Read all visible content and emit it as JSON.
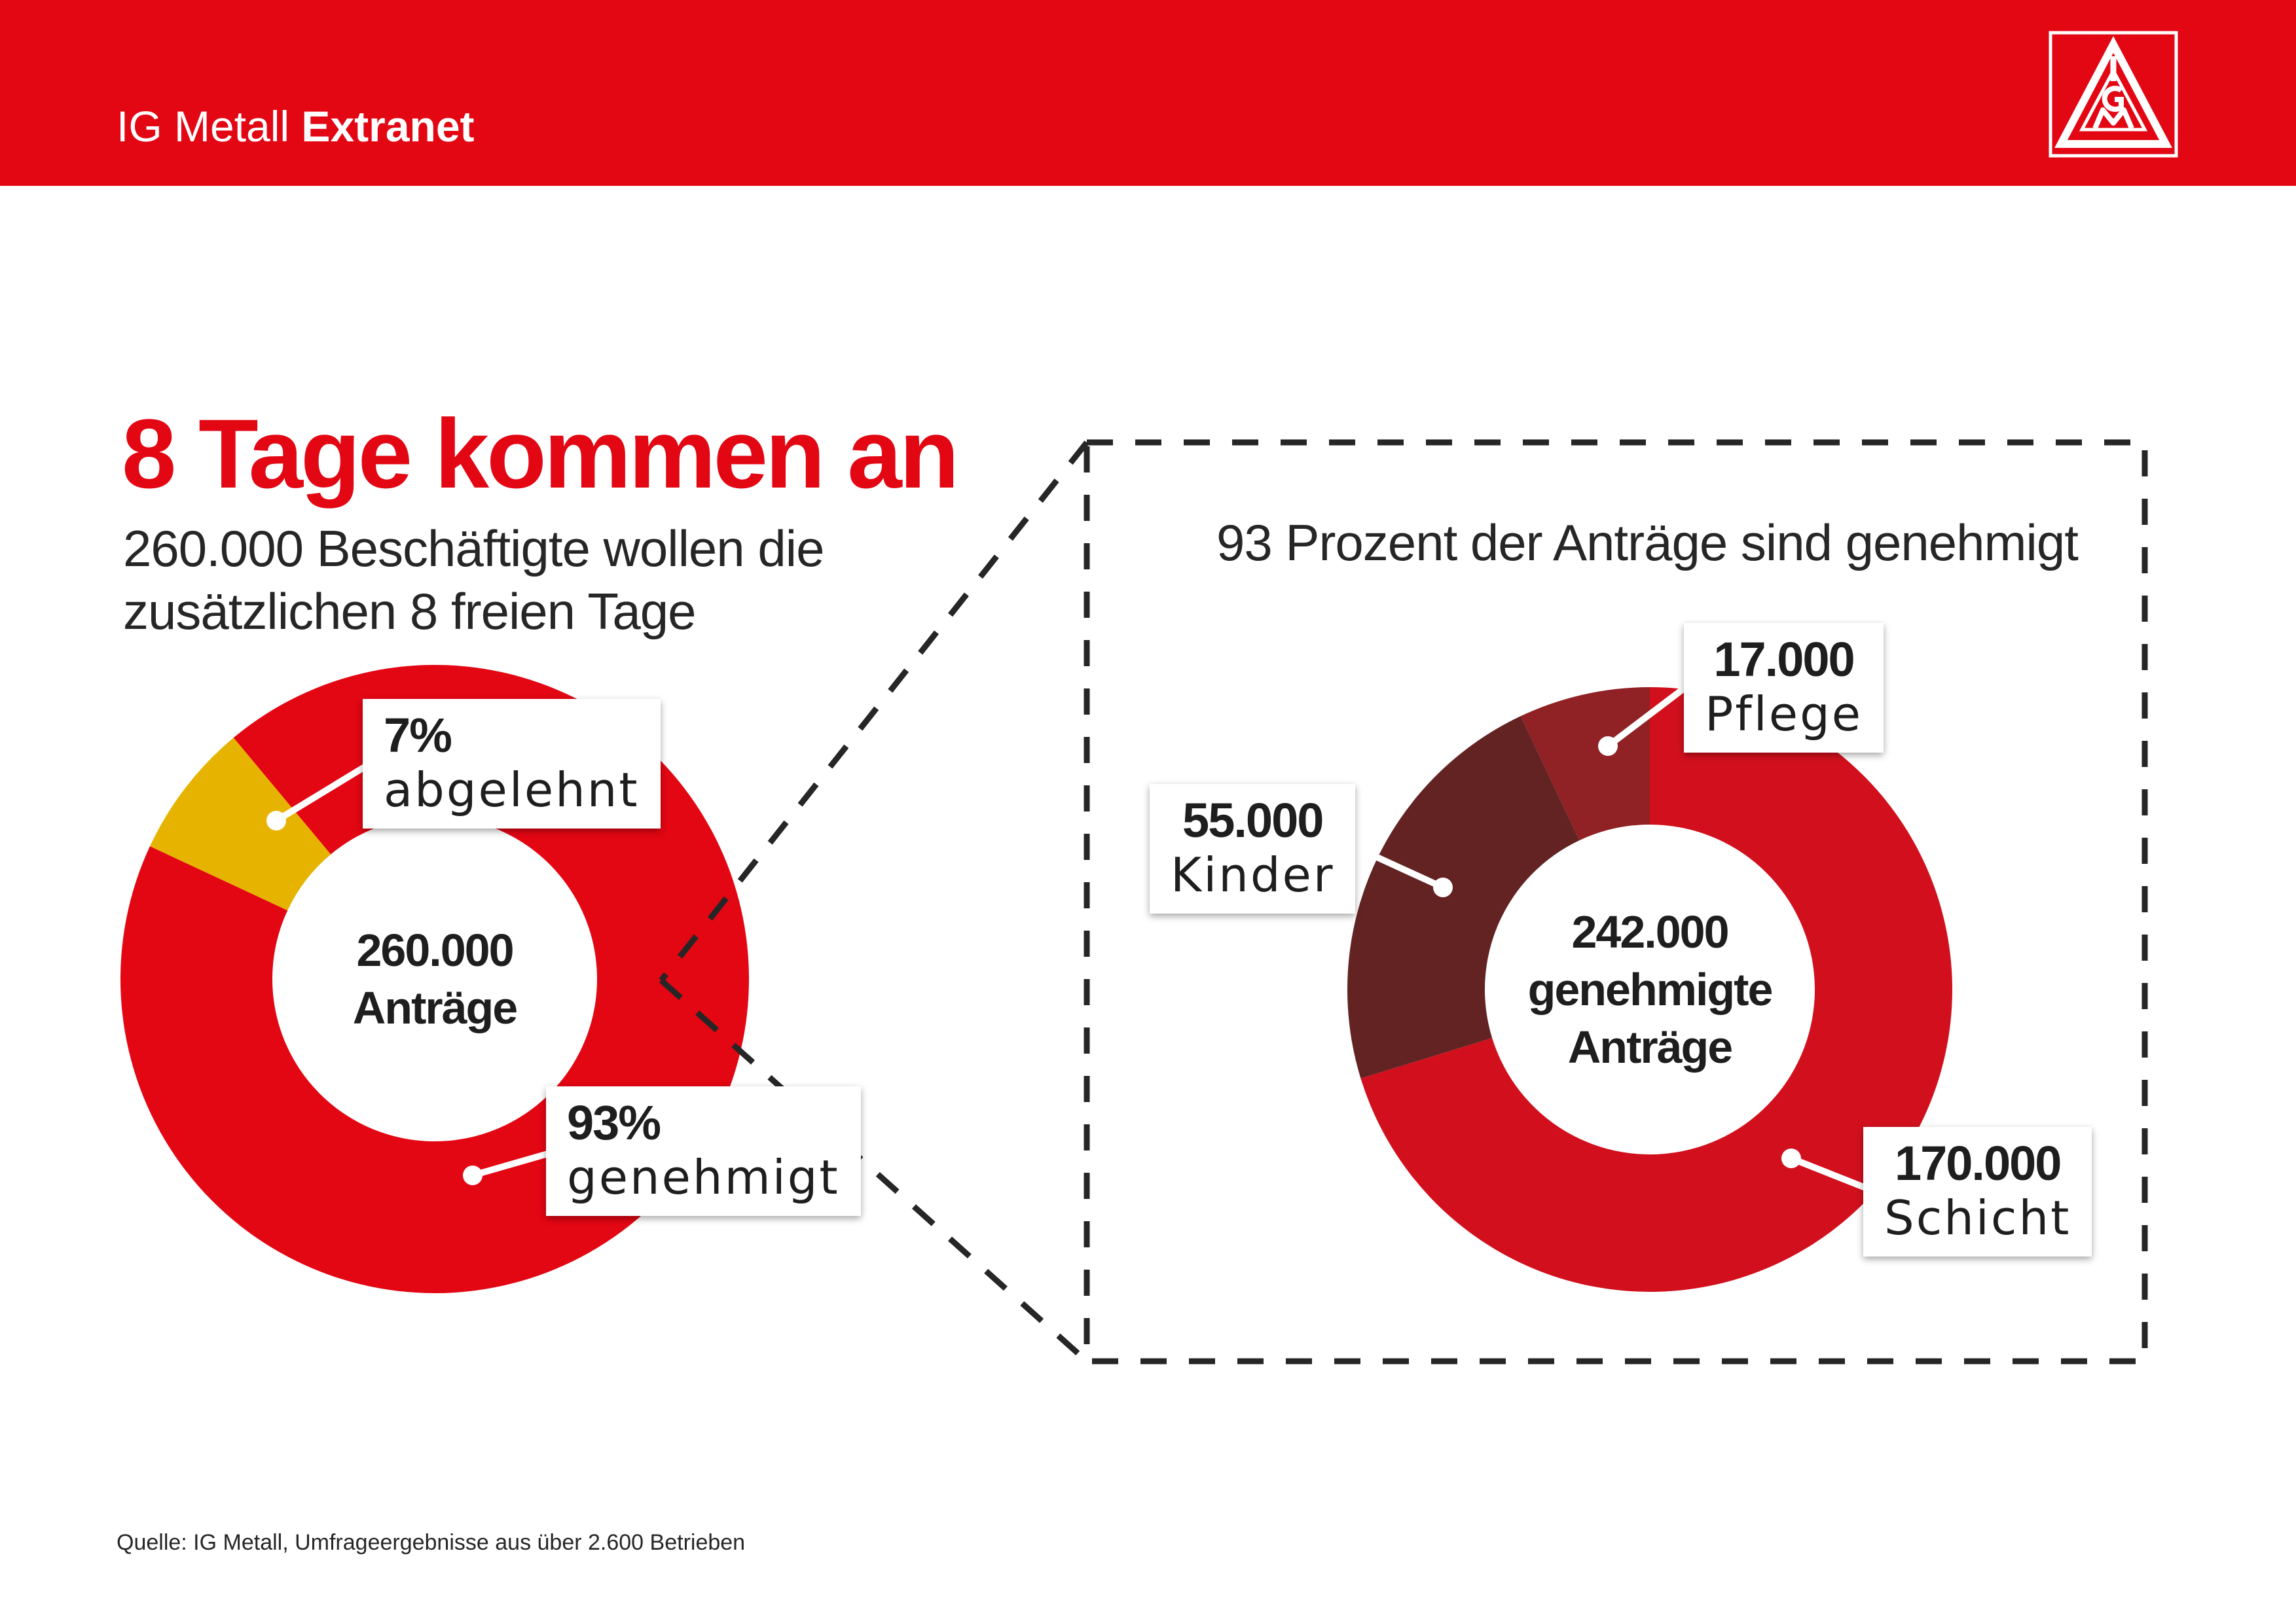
{
  "header": {
    "brand_light": "IG Metall",
    "brand_bold": "Extranet",
    "logo_icon": "igm-triangle-logo-icon",
    "bar_color": "#e30613"
  },
  "headline": "8 Tage kommen an",
  "subheadline": {
    "line1": "260.000 Beschäftigte wollen die",
    "line2": "zusätzlichen 8 freien Tage"
  },
  "source": "Quelle: IG Metall, Umfrageergebnisse aus über 2.600 Betrieben",
  "chart_data": [
    {
      "type": "pie",
      "variant": "donut",
      "title": "",
      "center_label": {
        "line1": "260.000",
        "line2": "Anträge"
      },
      "slices": [
        {
          "label": "genehmigt",
          "value": 93,
          "display_value": "93%",
          "color": "#e30613"
        },
        {
          "label": "abgelehnt",
          "value": 7,
          "display_value": "7%",
          "color": "#e6b400"
        }
      ]
    },
    {
      "type": "pie",
      "variant": "donut",
      "title": "93 Prozent der Anträge sind genehmigt",
      "center_label": {
        "line1": "242.000",
        "line2": "genehmigte",
        "line3": "Anträge"
      },
      "slices": [
        {
          "label": "Schicht",
          "value": 170000,
          "display_value": "170.000",
          "color": "#d2101d"
        },
        {
          "label": "Kinder",
          "value": 55000,
          "display_value": "55.000",
          "color": "#632323"
        },
        {
          "label": "Pflege",
          "value": 17000,
          "display_value": "17.000",
          "color": "#902124"
        }
      ]
    }
  ]
}
